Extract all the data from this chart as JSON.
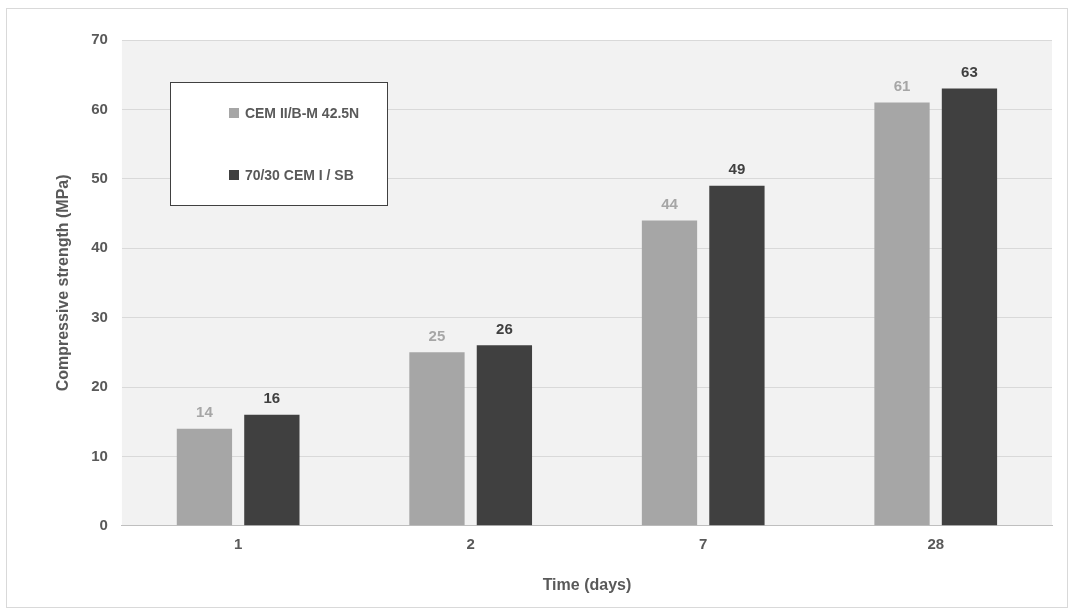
{
  "chart_data": {
    "type": "bar",
    "xlabel": "Time (days)",
    "ylabel": "Compressive strength (MPa)",
    "categories": [
      "1",
      "2",
      "7",
      "28"
    ],
    "series": [
      {
        "name": "CEM II/B-M 42.5N",
        "color": "#a6a6a6",
        "values": [
          14,
          25,
          44,
          61
        ]
      },
      {
        "name": "70/30 CEM I / SB",
        "color": "#404040",
        "values": [
          16,
          26,
          49,
          63
        ]
      }
    ],
    "ylim": [
      0,
      70
    ],
    "yticks": [
      0,
      10,
      20,
      30,
      40,
      50,
      60,
      70
    ],
    "grid": "y",
    "legend": "top left",
    "data_labels": true
  }
}
